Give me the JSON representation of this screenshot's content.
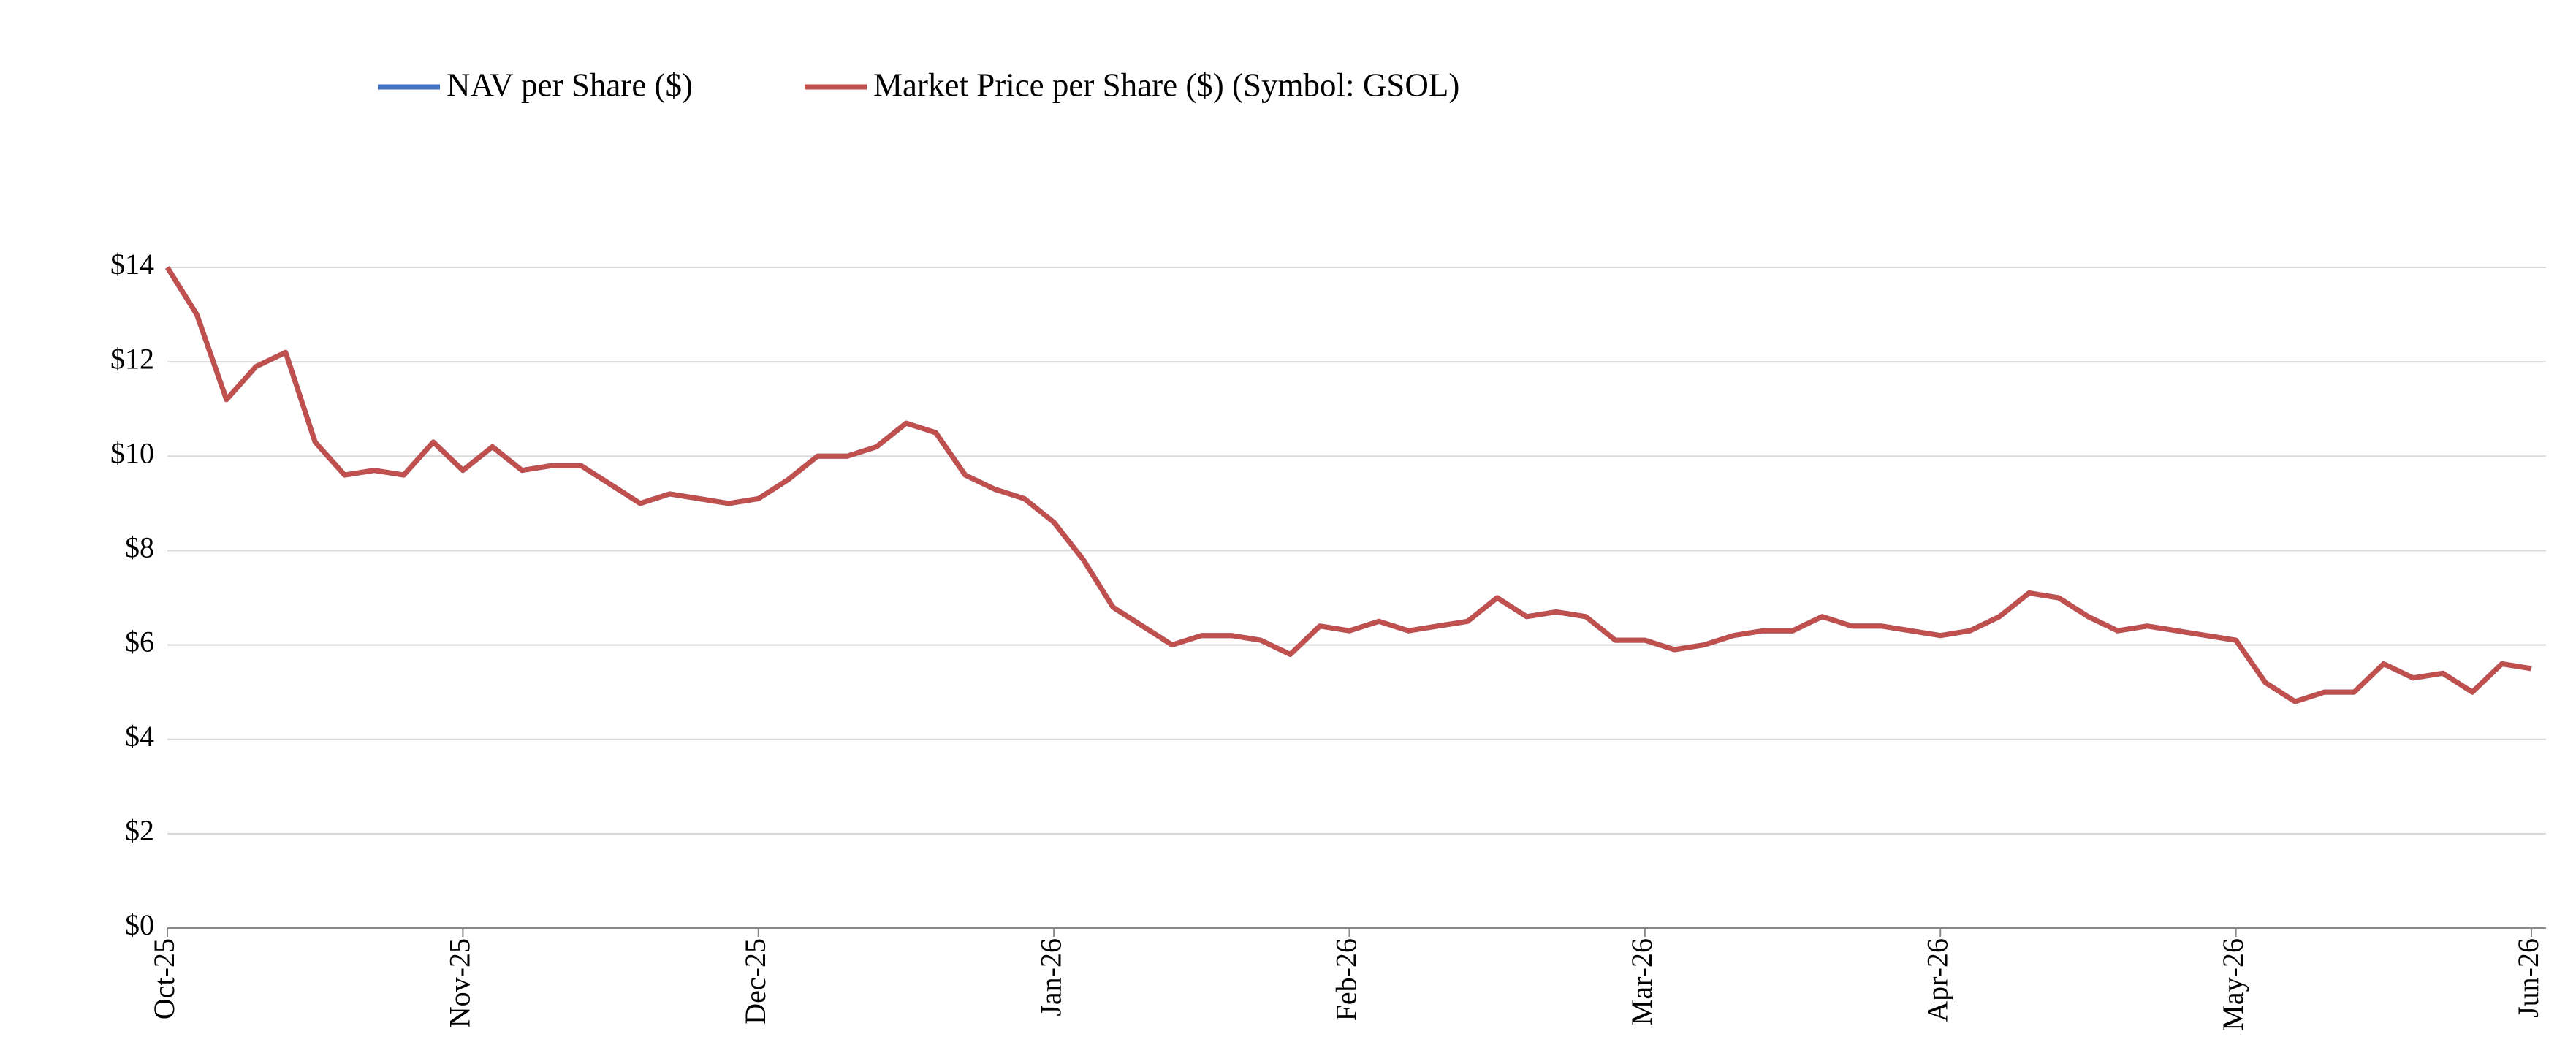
{
  "chart_data": {
    "type": "line",
    "categories": [
      "Oct-25",
      null,
      null,
      null,
      null,
      null,
      null,
      null,
      null,
      null,
      "Nov-25",
      null,
      null,
      null,
      null,
      null,
      null,
      null,
      null,
      null,
      "Dec-25",
      null,
      null,
      null,
      null,
      null,
      null,
      null,
      null,
      null,
      "Jan-26",
      null,
      null,
      null,
      null,
      null,
      null,
      null,
      null,
      null,
      "Feb-26",
      null,
      null,
      null,
      null,
      null,
      null,
      null,
      null,
      null,
      "Mar-26",
      null,
      null,
      null,
      null,
      null,
      null,
      null,
      null,
      null,
      "Apr-26",
      null,
      null,
      null,
      null,
      null,
      null,
      null,
      null,
      null,
      "May-26",
      null,
      null,
      null,
      null,
      null,
      null,
      null,
      null,
      null,
      "Jun-26"
    ],
    "series": [
      {
        "name": "NAV per Share ($)",
        "color": "#4472c4",
        "values": [
          14.0,
          13.0,
          11.2,
          11.9,
          12.2,
          10.3,
          9.6,
          9.7,
          9.6,
          10.3,
          9.7,
          10.2,
          9.7,
          9.8,
          9.8,
          9.4,
          9.0,
          9.2,
          9.1,
          9.0,
          9.1,
          9.5,
          10.0,
          10.0,
          10.2,
          10.7,
          10.5,
          9.6,
          9.3,
          9.1,
          8.6,
          7.8,
          6.8,
          6.4,
          6.0,
          6.2,
          6.2,
          6.1,
          5.8,
          6.4,
          6.3,
          6.5,
          6.3,
          6.4,
          6.5,
          7.0,
          6.6,
          6.7,
          6.6,
          6.1,
          6.1,
          5.9,
          6.0,
          6.2,
          6.3,
          6.3,
          6.6,
          6.4,
          6.4,
          6.3,
          6.2,
          6.3,
          6.6,
          7.1,
          7.0,
          6.6,
          6.3,
          6.4,
          6.3,
          6.2,
          6.1,
          5.2,
          4.8,
          5.0,
          5.0,
          5.6,
          5.3,
          5.4,
          5.0,
          5.6,
          5.5
        ]
      },
      {
        "name": "Market Price per Share ($) (Symbol: GSOL)",
        "color": "#c0504d",
        "values": [
          14.0,
          13.0,
          11.2,
          11.9,
          12.2,
          10.3,
          9.6,
          9.7,
          9.6,
          10.3,
          9.7,
          10.2,
          9.7,
          9.8,
          9.8,
          9.4,
          9.0,
          9.2,
          9.1,
          9.0,
          9.1,
          9.5,
          10.0,
          10.0,
          10.2,
          10.7,
          10.5,
          9.6,
          9.3,
          9.1,
          8.6,
          7.8,
          6.8,
          6.4,
          6.0,
          6.2,
          6.2,
          6.1,
          5.8,
          6.4,
          6.3,
          6.5,
          6.3,
          6.4,
          6.5,
          7.0,
          6.6,
          6.7,
          6.6,
          6.1,
          6.1,
          5.9,
          6.0,
          6.2,
          6.3,
          6.3,
          6.6,
          6.4,
          6.4,
          6.3,
          6.2,
          6.3,
          6.6,
          7.1,
          7.0,
          6.6,
          6.3,
          6.4,
          6.3,
          6.2,
          6.1,
          5.2,
          4.8,
          5.0,
          5.0,
          5.6,
          5.3,
          5.4,
          5.0,
          5.6,
          5.5
        ]
      }
    ],
    "ylim": [
      0,
      14
    ],
    "yticks": [
      {
        "value": 0,
        "label": "$0"
      },
      {
        "value": 2,
        "label": "$2"
      },
      {
        "value": 4,
        "label": "$4"
      },
      {
        "value": 6,
        "label": "$6"
      },
      {
        "value": 8,
        "label": "$8"
      },
      {
        "value": 10,
        "label": "$10"
      },
      {
        "value": 12,
        "label": "$12"
      },
      {
        "value": 14,
        "label": "$14"
      }
    ],
    "grid": true,
    "legend": "top"
  }
}
